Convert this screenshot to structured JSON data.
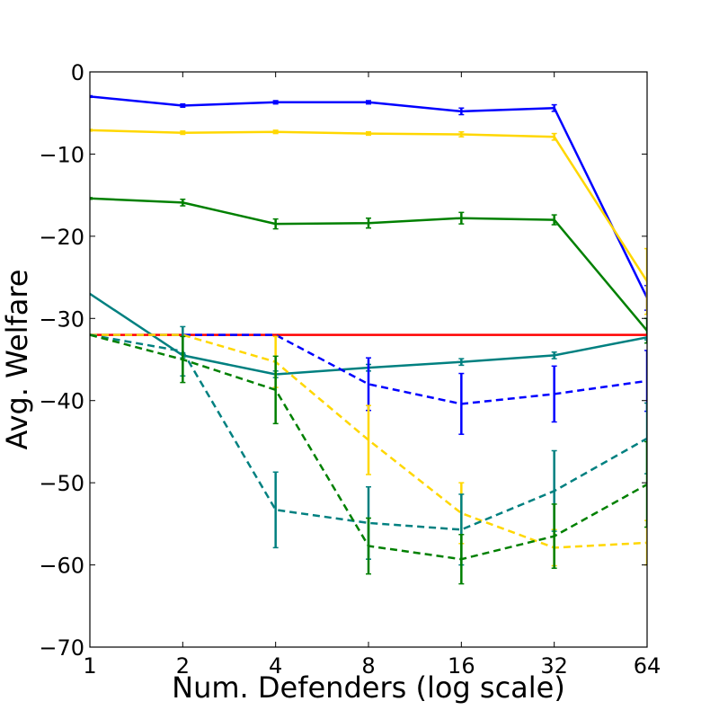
{
  "chart_data": {
    "type": "line",
    "title": "",
    "xlabel": "Num. Defenders (log scale)",
    "ylabel": "Avg. Welfare",
    "x": [
      1,
      2,
      4,
      8,
      16,
      32,
      64
    ],
    "x_tick_labels": [
      "1",
      "2",
      "4",
      "8",
      "16",
      "32",
      "64"
    ],
    "y_ticks": [
      0,
      -10,
      -20,
      -30,
      -40,
      -50,
      -60,
      -70
    ],
    "y_tick_labels": [
      "0",
      "−10",
      "−20",
      "−30",
      "−40",
      "−50",
      "−60",
      "−70"
    ],
    "ylim": [
      -70,
      0
    ],
    "xscale": "log2",
    "grid": false,
    "legend": "none",
    "series": [
      {
        "name": "blue-solid",
        "color": "#0000ff",
        "dash": false,
        "values": [
          -3,
          -4.1,
          -3.7,
          -3.7,
          -4.8,
          -4.4,
          -27.5
        ],
        "errors": [
          0.1,
          0.2,
          0.2,
          0.2,
          0.4,
          0.4,
          1.5
        ]
      },
      {
        "name": "gold-solid",
        "color": "#ffd700",
        "dash": false,
        "values": [
          -7.1,
          -7.4,
          -7.3,
          -7.5,
          -7.6,
          -7.9,
          -25.5
        ],
        "errors": [
          0.1,
          0.2,
          0.2,
          0.2,
          0.3,
          0.4,
          4.0
        ]
      },
      {
        "name": "green-solid",
        "color": "#008000",
        "dash": false,
        "values": [
          -15.4,
          -15.9,
          -18.5,
          -18.4,
          -17.8,
          -18.0,
          -31.5
        ],
        "errors": [
          0.1,
          0.4,
          0.6,
          0.6,
          0.7,
          0.6,
          1.5
        ]
      },
      {
        "name": "teal-solid",
        "color": "#008080",
        "dash": false,
        "values": [
          -27,
          -34.5,
          -36.8,
          -36,
          -35.3,
          -34.5,
          -32.3
        ],
        "errors": [
          0,
          0.3,
          0.4,
          0.4,
          0.4,
          0.4,
          0.3
        ]
      },
      {
        "name": "red-baseline",
        "color": "#ff0000",
        "dash": false,
        "values": [
          -32,
          -32,
          -32,
          -32,
          -32,
          -32,
          -32
        ],
        "errors": [
          0,
          0,
          0,
          0,
          0,
          0,
          0
        ]
      },
      {
        "name": "blue-dashed",
        "color": "#0000ff",
        "dash": true,
        "values": [
          -32,
          -32,
          -32,
          -38,
          -40.4,
          -39.2,
          -37.6
        ],
        "errors": [
          0,
          0,
          0,
          3.2,
          3.7,
          3.4,
          3.7
        ]
      },
      {
        "name": "gold-dashed",
        "color": "#ffd700",
        "dash": true,
        "values": [
          -32,
          -32,
          -35.3,
          -44.8,
          -53.7,
          -57.9,
          -57.3
        ],
        "errors": [
          0,
          0,
          3.1,
          4.2,
          3.7,
          2.2,
          2.7
        ]
      },
      {
        "name": "teal-dashed",
        "color": "#008080",
        "dash": true,
        "values": [
          -32,
          -34,
          -53.3,
          -54.9,
          -55.7,
          -51,
          -44.6
        ],
        "errors": [
          0,
          3,
          4.6,
          4.4,
          4.3,
          4.9,
          4.3
        ]
      },
      {
        "name": "green-dashed",
        "color": "#008000",
        "dash": true,
        "values": [
          -32,
          -35,
          -38.7,
          -57.7,
          -59.3,
          -56.5,
          -50.2
        ],
        "errors": [
          0,
          2.8,
          4.1,
          3.4,
          3.0,
          3.9,
          5.2
        ]
      }
    ]
  }
}
